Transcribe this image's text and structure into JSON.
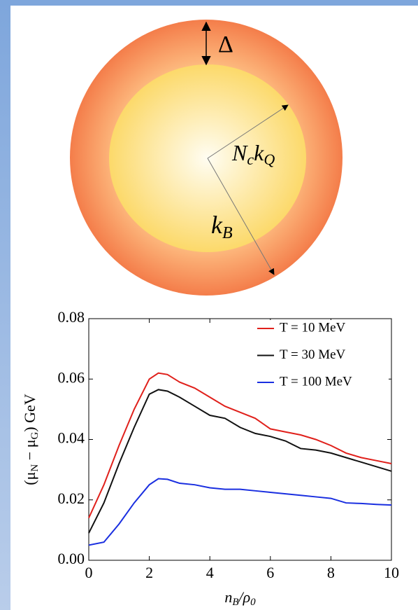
{
  "diagram": {
    "delta_label": "Δ",
    "inner_label": [
      "N",
      "c",
      "k",
      "Q"
    ],
    "outer_label": [
      "k",
      "B"
    ]
  },
  "chart_data": {
    "type": "line",
    "xlabel": [
      "n",
      "B",
      "/ρ",
      "0"
    ],
    "ylabel": [
      "(μ",
      "N",
      " − μ",
      "G",
      ") GeV"
    ],
    "x": [
      0,
      0.5,
      1,
      1.5,
      2,
      2.3,
      2.6,
      3,
      3.5,
      4,
      4.5,
      5,
      5.5,
      6,
      6.5,
      7,
      7.5,
      8,
      8.5,
      9,
      9.5,
      10
    ],
    "series": [
      {
        "name": "T = 10 MeV",
        "color": "#e0201b",
        "values": [
          0.014,
          0.025,
          0.038,
          0.05,
          0.06,
          0.062,
          0.0615,
          0.059,
          0.057,
          0.054,
          0.051,
          0.049,
          0.047,
          0.0435,
          0.0425,
          0.0415,
          0.04,
          0.038,
          0.0355,
          0.034,
          0.033,
          0.032
        ]
      },
      {
        "name": "T = 30 MeV",
        "color": "#111111",
        "values": [
          0.009,
          0.019,
          0.032,
          0.044,
          0.055,
          0.0565,
          0.056,
          0.054,
          0.051,
          0.048,
          0.047,
          0.044,
          0.042,
          0.041,
          0.0395,
          0.037,
          0.0365,
          0.0355,
          0.034,
          0.0325,
          0.031,
          0.0295
        ]
      },
      {
        "name": "T = 100 MeV",
        "color": "#1a2fe0",
        "values": [
          0.005,
          0.006,
          0.012,
          0.019,
          0.025,
          0.027,
          0.0268,
          0.0255,
          0.025,
          0.024,
          0.0235,
          0.0235,
          0.023,
          0.0225,
          0.022,
          0.0215,
          0.021,
          0.0205,
          0.019,
          0.0188,
          0.0185,
          0.0183
        ]
      }
    ],
    "xlim": [
      0,
      10
    ],
    "xticks": [
      0,
      2,
      4,
      6,
      8,
      10
    ],
    "ylim": [
      0,
      0.08
    ],
    "yticks": [
      {
        "value": 0,
        "label": "0.00"
      },
      {
        "value": 0.02,
        "label": "0.02"
      },
      {
        "value": 0.04,
        "label": "0.04"
      },
      {
        "value": 0.06,
        "label": "0.06"
      },
      {
        "value": 0.08,
        "label": "0.08"
      }
    ],
    "legend": "upper right"
  }
}
